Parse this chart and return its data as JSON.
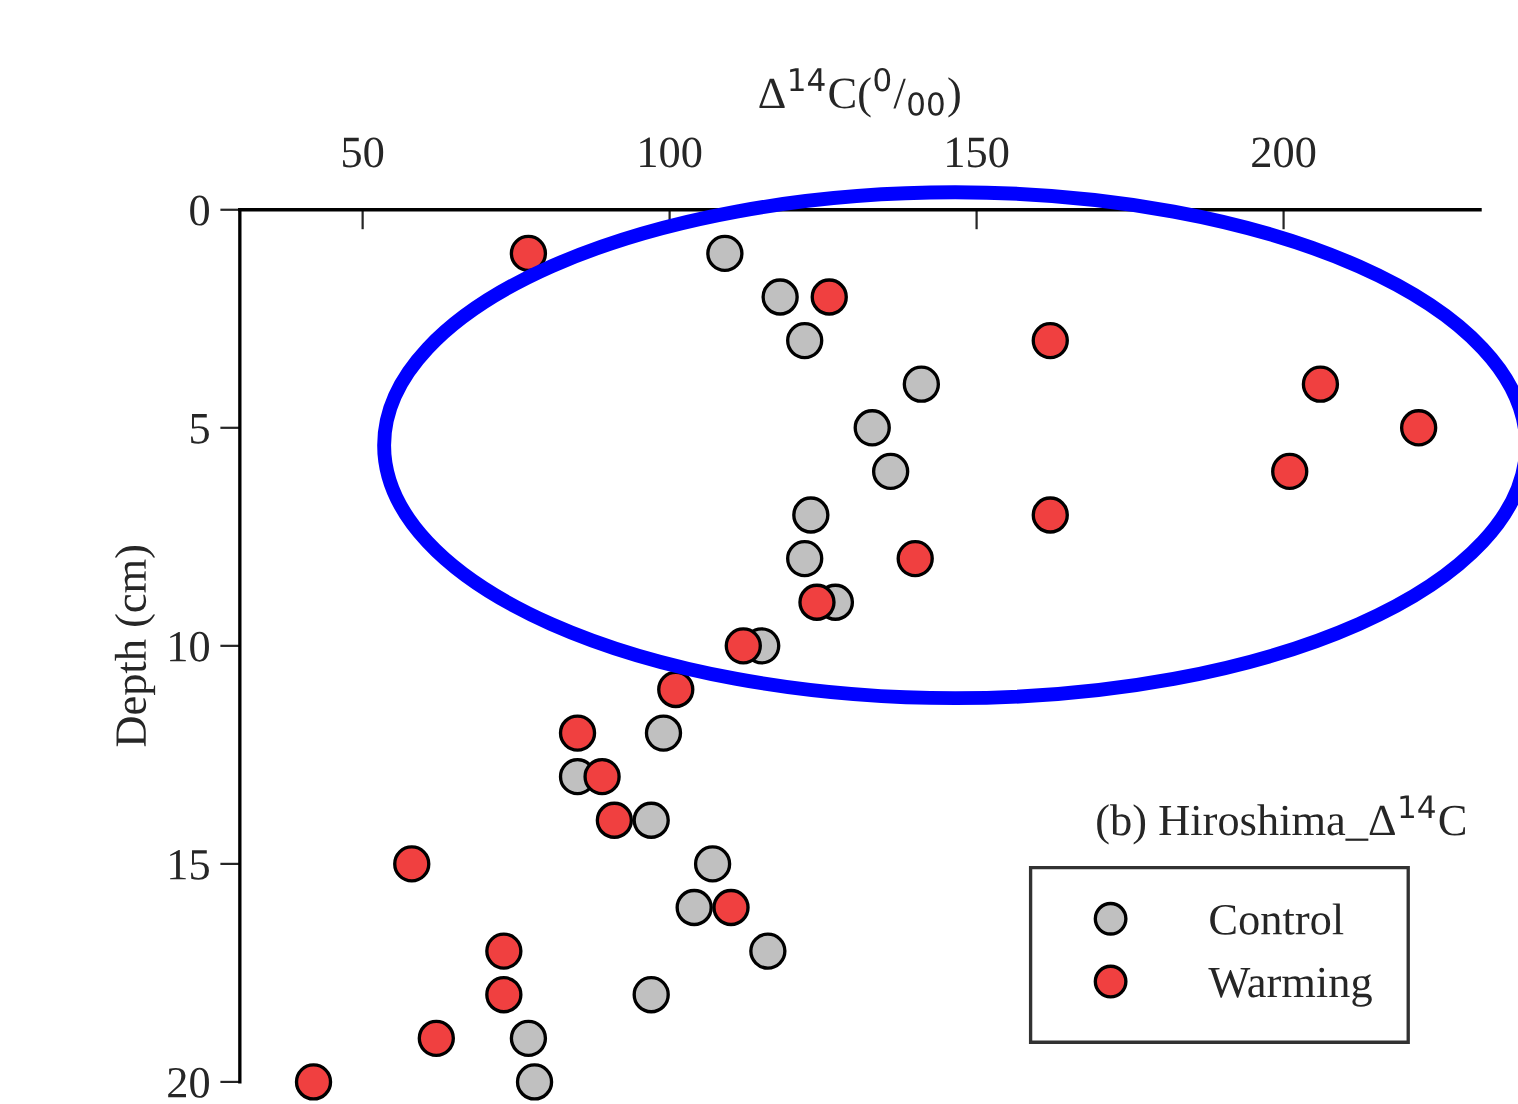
{
  "chart_data": {
    "type": "scatter",
    "xlabel": "Δ$^{14}$C($^{0}$/$_{00}$)",
    "ylabel": "Depth (cm)",
    "annotations": [
      "(b) Hiroshima_Δ$^{14}$C"
    ],
    "xlim": [
      30,
      232
    ],
    "xticks": [
      50,
      100,
      150,
      200
    ],
    "ylim": [
      20,
      0
    ],
    "yticks": [
      0,
      5,
      10,
      15,
      20
    ],
    "marker": "circle",
    "legend": "bottom right",
    "grid": false,
    "series": [
      {
        "name": "Control",
        "color": "#c0c0c0",
        "x": [
          109,
          118,
          122,
          141,
          133,
          136,
          123,
          122,
          127,
          115,
          null,
          99,
          85,
          97,
          107,
          104,
          116,
          97,
          77,
          78
        ],
        "values": [
          1,
          2,
          3,
          4,
          5,
          6,
          7,
          8,
          9,
          10,
          null,
          12,
          13,
          14,
          15,
          16,
          17,
          18,
          19,
          20
        ]
      },
      {
        "name": "Warming",
        "color": "#f04040",
        "x": [
          77,
          126,
          162,
          206,
          222,
          201,
          162,
          140,
          124,
          112,
          101,
          85,
          89,
          91,
          58,
          110,
          73,
          73,
          62,
          42
        ],
        "values": [
          1,
          2,
          3,
          4,
          5,
          6,
          7,
          8,
          9,
          10,
          11,
          12,
          13,
          14,
          15,
          16,
          17,
          18,
          19,
          20
        ]
      }
    ]
  }
}
